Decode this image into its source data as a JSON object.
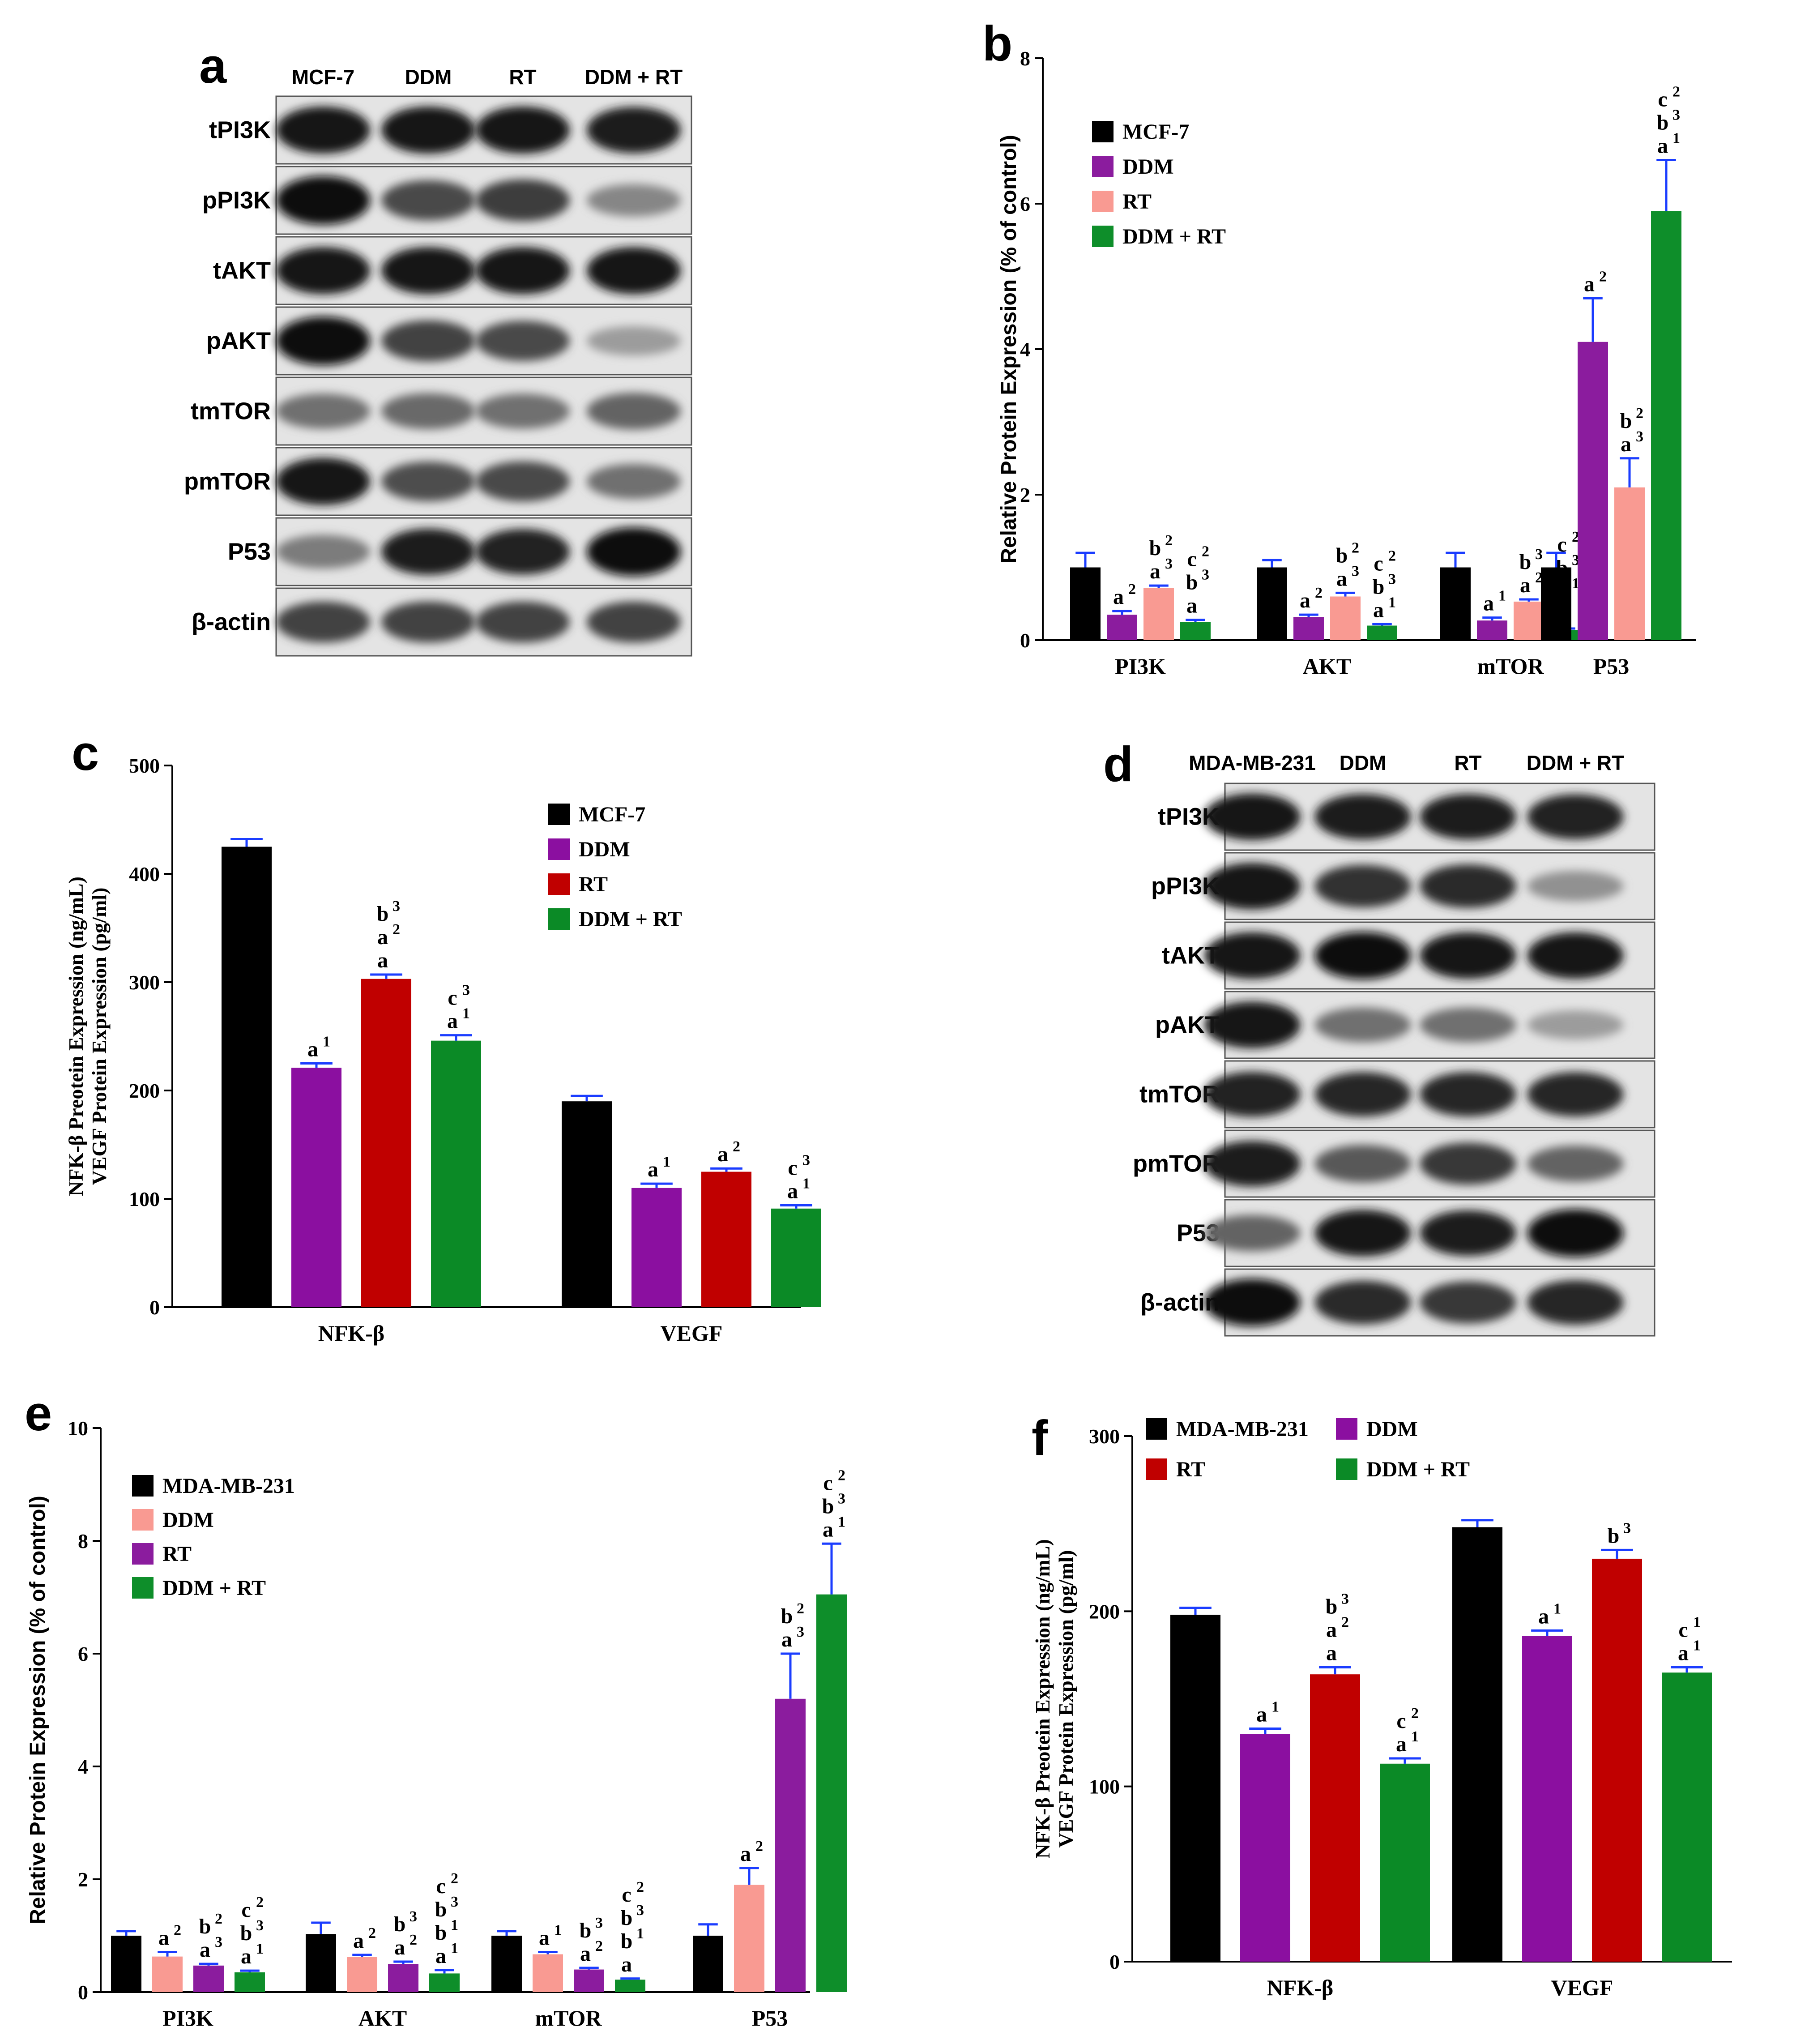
{
  "panels": {
    "a": {
      "letter": "a",
      "lanes": [
        "MCF-7",
        "DDM",
        "RT",
        "DDM + RT"
      ],
      "rows": [
        "tPI3K",
        "pPI3K",
        "tAKT",
        "pAKT",
        "tmTOR",
        "pmTOR",
        "P53",
        "β-actin"
      ],
      "intensities": [
        [
          0.95,
          0.95,
          0.95,
          0.92
        ],
        [
          1.0,
          0.72,
          0.78,
          0.45
        ],
        [
          0.95,
          0.95,
          0.95,
          0.95
        ],
        [
          1.0,
          0.75,
          0.72,
          0.35
        ],
        [
          0.55,
          0.58,
          0.55,
          0.6
        ],
        [
          0.95,
          0.7,
          0.72,
          0.55
        ],
        [
          0.5,
          0.92,
          0.9,
          1.0
        ],
        [
          0.75,
          0.75,
          0.75,
          0.75
        ]
      ]
    },
    "d": {
      "letter": "d",
      "lanes": [
        "MDA-MB-231",
        "DDM",
        "RT",
        "DDM + RT"
      ],
      "rows": [
        "tPI3K",
        "pPI3K",
        "tAKT",
        "pAKT",
        "tmTOR",
        "pmTOR",
        "P53",
        "β-actin"
      ],
      "intensities": [
        [
          0.95,
          0.92,
          0.92,
          0.9
        ],
        [
          0.95,
          0.82,
          0.85,
          0.4
        ],
        [
          0.95,
          0.98,
          0.95,
          0.95
        ],
        [
          0.95,
          0.55,
          0.55,
          0.35
        ],
        [
          0.9,
          0.88,
          0.88,
          0.88
        ],
        [
          0.92,
          0.65,
          0.8,
          0.6
        ],
        [
          0.6,
          0.95,
          0.92,
          1.0
        ],
        [
          0.98,
          0.85,
          0.8,
          0.88
        ]
      ]
    }
  },
  "chart_data": [
    {
      "id": "b",
      "letter": "b",
      "type": "bar",
      "ylabel": "Relative Protein Expression (% of control)",
      "ylim": [
        0,
        8
      ],
      "yticks": [
        0,
        2,
        4,
        6,
        8
      ],
      "categories": [
        "PI3K",
        "AKT",
        "mTOR",
        "P53"
      ],
      "series": [
        {
          "name": "MCF-7",
          "color": "#000000",
          "values": [
            1.0,
            1.0,
            1.0,
            1.0
          ],
          "errors": [
            0.2,
            0.1,
            0.2,
            0.2
          ]
        },
        {
          "name": "DDM",
          "color": "#8B1C9E",
          "values": [
            0.35,
            0.32,
            0.27,
            4.1
          ],
          "errors": [
            0.05,
            0.03,
            0.04,
            0.6
          ]
        },
        {
          "name": "RT",
          "color": "#F99A92",
          "values": [
            0.72,
            0.6,
            0.53,
            2.1
          ],
          "errors": [
            0.03,
            0.05,
            0.03,
            0.4
          ]
        },
        {
          "name": "DDM + RT",
          "color": "#0E8E2A",
          "values": [
            0.25,
            0.2,
            0.14,
            5.9
          ],
          "errors": [
            0.03,
            0.02,
            0.02,
            0.7
          ]
        }
      ],
      "annotations": [
        [
          [],
          [
            [
              "a",
              "2"
            ]
          ],
          [
            [
              "b",
              "2"
            ],
            [
              "a",
              "3"
            ]
          ],
          [
            [
              "c",
              "2"
            ],
            [
              "b",
              "3"
            ],
            [
              "a",
              ""
            ]
          ]
        ],
        [
          [],
          [
            [
              "a",
              "2"
            ]
          ],
          [
            [
              "b",
              "2"
            ],
            [
              "a",
              "3"
            ]
          ],
          [
            [
              "c",
              "2"
            ],
            [
              "b",
              "3"
            ],
            [
              "a",
              "1"
            ]
          ]
        ],
        [
          [],
          [
            [
              "a",
              "1"
            ]
          ],
          [
            [
              "b",
              "3"
            ],
            [
              "a",
              "2"
            ]
          ],
          [
            [
              "c",
              "2"
            ],
            [
              "b",
              "3"
            ],
            [
              "b",
              "1"
            ],
            [
              "a",
              ""
            ]
          ]
        ],
        [
          [],
          [
            [
              "a",
              "2"
            ]
          ],
          [
            [
              "b",
              "2"
            ],
            [
              "a",
              "3"
            ]
          ],
          [
            [
              "c",
              "2"
            ],
            [
              "b",
              "3"
            ],
            [
              "a",
              "1"
            ]
          ]
        ]
      ],
      "legend_position": "top-left"
    },
    {
      "id": "c",
      "letter": "c",
      "type": "bar",
      "ylabel": "NFK-β Preotein Expression (ng/mL)",
      "ylabel2": "VEGF Protein Expression (pg/ml)",
      "ylim": [
        0,
        500
      ],
      "yticks": [
        0,
        100,
        200,
        300,
        400,
        500
      ],
      "categories": [
        "NFK-β",
        "VEGF"
      ],
      "series": [
        {
          "name": "MCF-7",
          "color": "#000000",
          "values": [
            425,
            190
          ],
          "errors": [
            7,
            5
          ]
        },
        {
          "name": "DDM",
          "color": "#8B0FA0",
          "values": [
            221,
            110
          ],
          "errors": [
            4,
            4
          ]
        },
        {
          "name": "RT",
          "color": "#C00000",
          "values": [
            303,
            125
          ],
          "errors": [
            4,
            3
          ]
        },
        {
          "name": "DDM + RT",
          "color": "#0B8A26",
          "values": [
            246,
            91
          ],
          "errors": [
            5,
            3
          ]
        }
      ],
      "annotations": [
        [
          [],
          [
            [
              "a",
              "1"
            ]
          ],
          [
            [
              "b",
              "3"
            ],
            [
              "a",
              "2"
            ],
            [
              "a",
              ""
            ]
          ],
          [
            [
              "c",
              "3"
            ],
            [
              "a",
              "1"
            ]
          ]
        ],
        [
          [],
          [
            [
              "a",
              "1"
            ]
          ],
          [
            [
              "a",
              "2"
            ]
          ],
          [
            [
              "c",
              "3"
            ],
            [
              "a",
              "1"
            ]
          ]
        ]
      ],
      "legend_position": "top-right"
    },
    {
      "id": "e",
      "letter": "e",
      "type": "bar",
      "ylabel": "Relative Protein Expression (% of control)",
      "ylim": [
        0,
        10
      ],
      "yticks": [
        0,
        2,
        4,
        6,
        8,
        10
      ],
      "categories": [
        "PI3K",
        "AKT",
        "mTOR",
        "P53"
      ],
      "series": [
        {
          "name": "MDA-MB-231",
          "color": "#000000",
          "values": [
            1.0,
            1.03,
            1.0,
            1.0
          ],
          "errors": [
            0.08,
            0.2,
            0.08,
            0.2
          ]
        },
        {
          "name": "DDM",
          "color": "#F99A92",
          "values": [
            0.63,
            0.62,
            0.67,
            1.9
          ],
          "errors": [
            0.08,
            0.04,
            0.04,
            0.3
          ]
        },
        {
          "name": "RT",
          "color": "#8B1C9E",
          "values": [
            0.47,
            0.5,
            0.4,
            5.2
          ],
          "errors": [
            0.03,
            0.04,
            0.03,
            0.8
          ]
        },
        {
          "name": "DDM + RT",
          "color": "#0E8E2A",
          "values": [
            0.35,
            0.33,
            0.22,
            7.05
          ],
          "errors": [
            0.03,
            0.06,
            0.02,
            0.9
          ]
        }
      ],
      "annotations": [
        [
          [],
          [
            [
              "a",
              "2"
            ]
          ],
          [
            [
              "b",
              "2"
            ],
            [
              "a",
              "3"
            ]
          ],
          [
            [
              "c",
              "2"
            ],
            [
              "b",
              "3"
            ],
            [
              "a",
              "1"
            ]
          ]
        ],
        [
          [],
          [
            [
              "a",
              "2"
            ]
          ],
          [
            [
              "b",
              "3"
            ],
            [
              "a",
              "2"
            ]
          ],
          [
            [
              "c",
              "2"
            ],
            [
              "b",
              "3"
            ],
            [
              "b",
              "1"
            ],
            [
              "a",
              "1"
            ]
          ]
        ],
        [
          [],
          [
            [
              "a",
              "1"
            ]
          ],
          [
            [
              "b",
              "3"
            ],
            [
              "a",
              "2"
            ]
          ],
          [
            [
              "c",
              "2"
            ],
            [
              "b",
              "3"
            ],
            [
              "b",
              "1"
            ],
            [
              "a",
              ""
            ]
          ]
        ],
        [
          [],
          [
            [
              "a",
              "2"
            ]
          ],
          [
            [
              "b",
              "2"
            ],
            [
              "a",
              "3"
            ]
          ],
          [
            [
              "c",
              "2"
            ],
            [
              "b",
              "3"
            ],
            [
              "a",
              "1"
            ]
          ]
        ]
      ],
      "legend_position": "top-left"
    },
    {
      "id": "f",
      "letter": "f",
      "type": "bar",
      "ylabel": "NFK-β Preotein Expression (ng/mL)",
      "ylabel2": "VEGF Protein Expression (pg/ml)",
      "ylim": [
        0,
        300
      ],
      "yticks": [
        0,
        100,
        200,
        300
      ],
      "categories": [
        "NFK-β",
        "VEGF"
      ],
      "series": [
        {
          "name": "MDA-MB-231",
          "color": "#000000",
          "values": [
            198,
            248
          ],
          "errors": [
            4,
            4
          ]
        },
        {
          "name": "DDM",
          "color": "#8B0FA0",
          "values": [
            130,
            186
          ],
          "errors": [
            3,
            3
          ]
        },
        {
          "name": "RT",
          "color": "#C00000",
          "values": [
            164,
            230
          ],
          "errors": [
            4,
            5
          ]
        },
        {
          "name": "DDM + RT",
          "color": "#0B8A26",
          "values": [
            113,
            165
          ],
          "errors": [
            3,
            3
          ]
        }
      ],
      "annotations": [
        [
          [],
          [
            [
              "a",
              "1"
            ]
          ],
          [
            [
              "b",
              "3"
            ],
            [
              "a",
              "2"
            ],
            [
              "a",
              ""
            ]
          ],
          [
            [
              "c",
              "2"
            ],
            [
              "a",
              "1"
            ]
          ]
        ],
        [
          [],
          [
            [
              "a",
              "1"
            ]
          ],
          [
            [
              "b",
              "3"
            ]
          ],
          [
            [
              "c",
              "1"
            ],
            [
              "a",
              "1"
            ]
          ]
        ]
      ],
      "legend_position": "top"
    }
  ]
}
